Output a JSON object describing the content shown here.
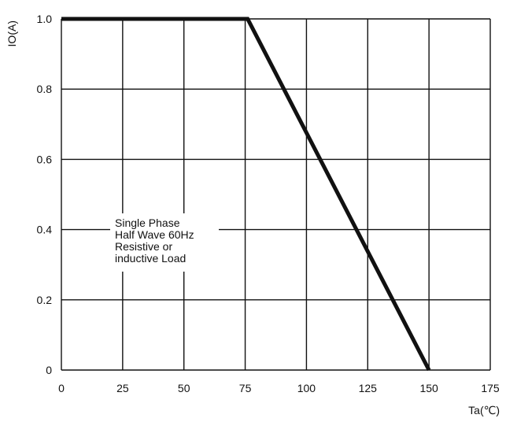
{
  "chart_data": {
    "type": "line",
    "title": "",
    "xlabel": "Ta(℃)",
    "ylabel": "IO(A)",
    "xlim": [
      0,
      175
    ],
    "ylim": [
      0,
      1.0
    ],
    "grid": true,
    "x_ticks": [
      0,
      25,
      50,
      75,
      100,
      125,
      150,
      175
    ],
    "x_tick_labels": [
      "0",
      "25",
      "50",
      "75",
      "100",
      "125",
      "150",
      "175"
    ],
    "y_ticks": [
      0,
      0.2,
      0.4,
      0.6,
      0.8,
      1.0
    ],
    "y_tick_labels": [
      "0",
      "0.2",
      "0.4",
      "0.6",
      "0.8",
      "1.0"
    ],
    "series": [
      {
        "name": "",
        "color": "#111111",
        "x": [
          0,
          76,
          150
        ],
        "y": [
          1.0,
          1.0,
          0
        ]
      }
    ],
    "annotation": {
      "lines": [
        "Single Phase",
        "Half Wave 60Hz",
        "Resistive or",
        "inductive Load"
      ]
    },
    "colors": {
      "line": "#111111",
      "grid": "#111111",
      "background": "#ffffff"
    }
  }
}
